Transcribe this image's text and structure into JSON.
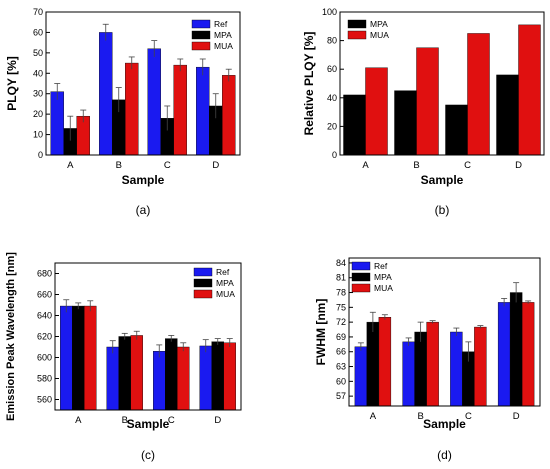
{
  "chart_data": [
    {
      "type": "bar",
      "panel_label": "(a)",
      "categories": [
        "A",
        "B",
        "C",
        "D"
      ],
      "xlabel": "Sample",
      "ylabel": "PLQY [%]",
      "ylim": [
        0,
        70
      ],
      "yticks": [
        0,
        10,
        20,
        30,
        40,
        50,
        60,
        70
      ],
      "legend_position": "top-right",
      "series": [
        {
          "name": "Ref",
          "color": "#1a1af0",
          "values": [
            31,
            60,
            52,
            43
          ],
          "errors": [
            4,
            4,
            4,
            4
          ]
        },
        {
          "name": "MPA",
          "color": "#000000",
          "values": [
            13,
            27,
            18,
            24
          ],
          "errors": [
            6,
            6,
            6,
            6
          ]
        },
        {
          "name": "MUA",
          "color": "#e01010",
          "values": [
            19,
            45,
            44,
            39
          ],
          "errors": [
            3,
            3,
            3,
            3
          ]
        }
      ]
    },
    {
      "type": "bar",
      "panel_label": "(b)",
      "categories": [
        "A",
        "B",
        "C",
        "D"
      ],
      "xlabel": "Sample",
      "ylabel": "Relative PLQY [%]",
      "ylim": [
        0,
        100
      ],
      "yticks": [
        0,
        20,
        40,
        60,
        80,
        100
      ],
      "legend_position": "top-left",
      "series": [
        {
          "name": "MPA",
          "color": "#000000",
          "values": [
            42,
            45,
            35,
            56
          ]
        },
        {
          "name": "MUA",
          "color": "#e01010",
          "values": [
            61,
            75,
            85,
            91
          ]
        }
      ]
    },
    {
      "type": "bar",
      "panel_label": "(c)",
      "categories": [
        "A",
        "B",
        "C",
        "D"
      ],
      "xlabel": "Sample",
      "ylabel": "Emission Peak Wavelength [nm]",
      "ylim": [
        550,
        690
      ],
      "yticks": [
        560,
        580,
        600,
        620,
        640,
        660,
        680
      ],
      "legend_position": "top-right",
      "series": [
        {
          "name": "Ref",
          "color": "#1a1af0",
          "values": [
            649,
            610,
            606,
            611
          ],
          "errors": [
            6,
            6,
            6,
            6
          ]
        },
        {
          "name": "MPA",
          "color": "#000000",
          "values": [
            649,
            620,
            618,
            615
          ],
          "errors": [
            3,
            3,
            3,
            3
          ]
        },
        {
          "name": "MUA",
          "color": "#e01010",
          "values": [
            649,
            621,
            610,
            614
          ],
          "errors": [
            5,
            4,
            4,
            4
          ]
        }
      ]
    },
    {
      "type": "bar",
      "panel_label": "(d)",
      "categories": [
        "A",
        "B",
        "C",
        "D"
      ],
      "xlabel": "Sample",
      "ylabel": "FWHM [nm]",
      "ylim": [
        55,
        85
      ],
      "yticks": [
        57,
        60,
        63,
        66,
        69,
        72,
        75,
        78,
        81,
        84
      ],
      "legend_position": "top-left",
      "series": [
        {
          "name": "Ref",
          "color": "#1a1af0",
          "values": [
            67,
            68,
            70,
            76
          ],
          "errors": [
            0.8,
            0.8,
            0.8,
            0.8
          ]
        },
        {
          "name": "MPA",
          "color": "#000000",
          "values": [
            72,
            70,
            66,
            78
          ],
          "errors": [
            2,
            2,
            2,
            2
          ]
        },
        {
          "name": "MUA",
          "color": "#e01010",
          "values": [
            73,
            72,
            71,
            76
          ],
          "errors": [
            0.5,
            0.3,
            0.3,
            0.3
          ]
        }
      ]
    }
  ]
}
